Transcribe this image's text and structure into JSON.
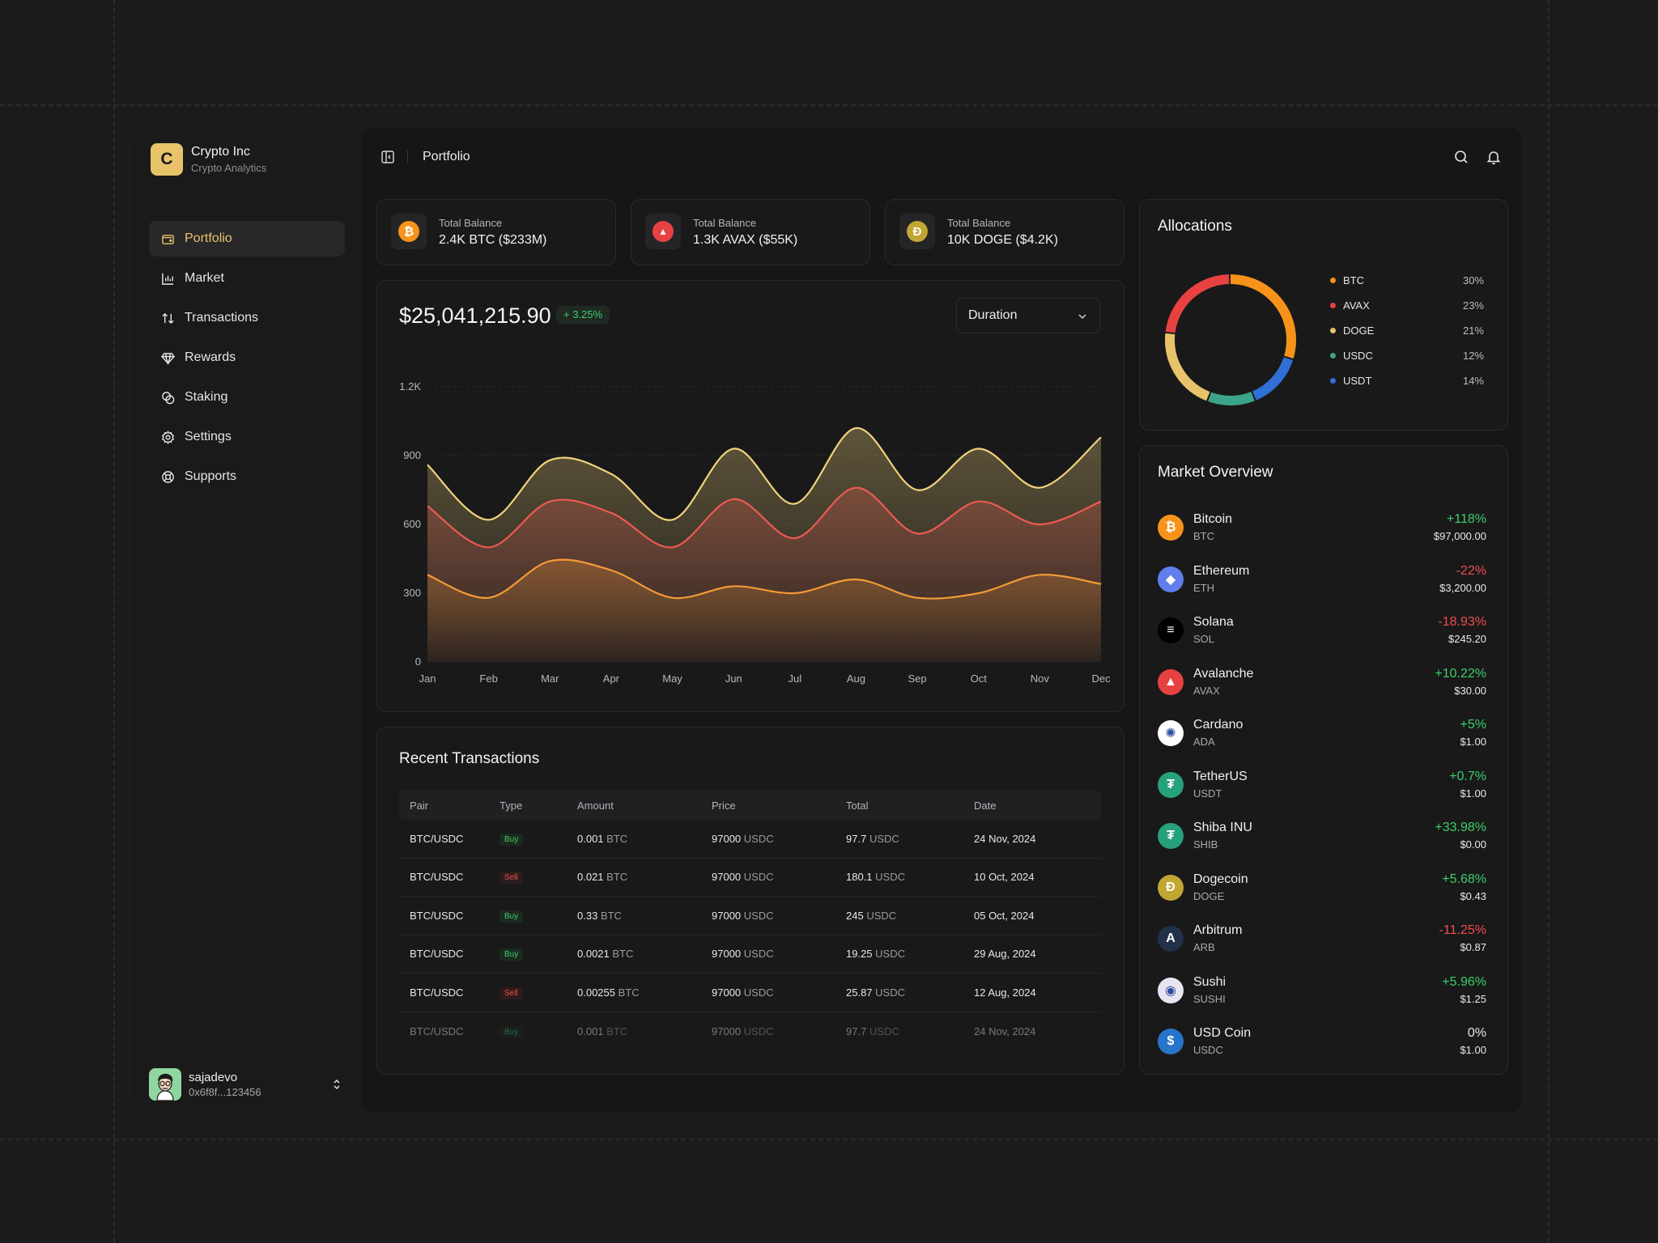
{
  "brand": {
    "logo_letter": "C",
    "name": "Crypto Inc",
    "subtitle": "Crypto Analytics"
  },
  "nav": [
    {
      "label": "Portfolio",
      "icon": "wallet-icon",
      "active": true
    },
    {
      "label": "Market",
      "icon": "chart-icon",
      "active": false
    },
    {
      "label": "Transactions",
      "icon": "arrows-icon",
      "active": false
    },
    {
      "label": "Rewards",
      "icon": "diamond-icon",
      "active": false
    },
    {
      "label": "Staking",
      "icon": "coins-icon",
      "active": false
    },
    {
      "label": "Settings",
      "icon": "gear-icon",
      "active": false
    },
    {
      "label": "Supports",
      "icon": "lifebuoy-icon",
      "active": false
    }
  ],
  "user": {
    "name": "sajadevo",
    "address": "0x6f8f...123456"
  },
  "header": {
    "title": "Portfolio"
  },
  "balances": [
    {
      "label": "Total Balance",
      "value": "2.4K BTC ($233M)",
      "icon": "btc-icon",
      "color": "#f7931a"
    },
    {
      "label": "Total Balance",
      "value": "1.3K AVAX ($55K)",
      "icon": "avax-icon",
      "color": "#e84142"
    },
    {
      "label": "Total Balance",
      "value": "10K DOGE ($4.2K)",
      "icon": "doge-icon",
      "color": "#c2a633"
    }
  ],
  "portfolio_chart": {
    "total": "$25,041,215.90",
    "change": "+ 3.25%",
    "duration_label": "Duration"
  },
  "chart_data": {
    "type": "area",
    "categories": [
      "Jan",
      "Feb",
      "Mar",
      "Apr",
      "May",
      "Jun",
      "Jul",
      "Aug",
      "Sep",
      "Oct",
      "Nov",
      "Dec"
    ],
    "y_ticks": [
      "0",
      "300",
      "600",
      "900",
      "1.2K"
    ],
    "ylim": [
      0,
      1200
    ],
    "grid": true,
    "legend": "none",
    "series": [
      {
        "color": "#f0d27a",
        "values": [
          860,
          620,
          880,
          820,
          620,
          930,
          690,
          1020,
          750,
          930,
          760,
          980
        ]
      },
      {
        "color": "#ec5a52",
        "values": [
          680,
          500,
          700,
          650,
          500,
          710,
          540,
          760,
          560,
          700,
          600,
          700
        ]
      },
      {
        "color": "#f39a36",
        "values": [
          380,
          280,
          440,
          400,
          280,
          330,
          300,
          360,
          280,
          300,
          380,
          340
        ]
      }
    ]
  },
  "transactions": {
    "title": "Recent Transactions",
    "columns": [
      "Pair",
      "Type",
      "Amount",
      "Price",
      "Total",
      "Date"
    ],
    "rows": [
      {
        "pair": "BTC/USDC",
        "type": "Buy",
        "amount": "0.001",
        "amount_unit": "BTC",
        "price": "97000",
        "price_unit": "USDC",
        "total": "97.7",
        "total_unit": "USDC",
        "date": "24 Nov, 2024"
      },
      {
        "pair": "BTC/USDC",
        "type": "Sell",
        "amount": "0.021",
        "amount_unit": "BTC",
        "price": "97000",
        "price_unit": "USDC",
        "total": "180.1",
        "total_unit": "USDC",
        "date": "10 Oct, 2024"
      },
      {
        "pair": "BTC/USDC",
        "type": "Buy",
        "amount": "0.33",
        "amount_unit": "BTC",
        "price": "97000",
        "price_unit": "USDC",
        "total": "245",
        "total_unit": "USDC",
        "date": "05 Oct, 2024"
      },
      {
        "pair": "BTC/USDC",
        "type": "Buy",
        "amount": "0.0021",
        "amount_unit": "BTC",
        "price": "97000",
        "price_unit": "USDC",
        "total": "19.25",
        "total_unit": "USDC",
        "date": "29 Aug, 2024"
      },
      {
        "pair": "BTC/USDC",
        "type": "Sell",
        "amount": "0.00255",
        "amount_unit": "BTC",
        "price": "97000",
        "price_unit": "USDC",
        "total": "25.87",
        "total_unit": "USDC",
        "date": "12 Aug, 2024"
      },
      {
        "pair": "BTC/USDC",
        "type": "Buy",
        "amount": "0.001",
        "amount_unit": "BTC",
        "price": "97000",
        "price_unit": "USDC",
        "total": "97.7",
        "total_unit": "USDC",
        "date": "24 Nov, 2024"
      }
    ]
  },
  "allocations": {
    "title": "Allocations",
    "items": [
      {
        "name": "BTC",
        "value": "30%",
        "pct": 30,
        "color": "#f7931a"
      },
      {
        "name": "AVAX",
        "value": "23%",
        "pct": 23,
        "color": "#e84142"
      },
      {
        "name": "DOGE",
        "value": "21%",
        "pct": 21,
        "color": "#e8c36a"
      },
      {
        "name": "USDC",
        "value": "12%",
        "pct": 12,
        "color": "#3aa58a"
      },
      {
        "name": "USDT",
        "value": "14%",
        "pct": 14,
        "color": "#2f6fd6"
      }
    ]
  },
  "market": {
    "title": "Market Overview",
    "items": [
      {
        "name": "Bitcoin",
        "symbol": "BTC",
        "change": "+118%",
        "price": "$97,000.00",
        "trend": "up",
        "icon": "btc-icon",
        "color": "#f7931a",
        "glyph": "₿"
      },
      {
        "name": "Ethereum",
        "symbol": "ETH",
        "change": "-22%",
        "price": "$3,200.00",
        "trend": "down",
        "icon": "eth-icon",
        "color": "#627eea",
        "glyph": "◆"
      },
      {
        "name": "Solana",
        "symbol": "SOL",
        "change": "-18.93%",
        "price": "$245.20",
        "trend": "down",
        "icon": "sol-icon",
        "color": "#000000",
        "glyph": "≡"
      },
      {
        "name": "Avalanche",
        "symbol": "AVAX",
        "change": "+10.22%",
        "price": "$30.00",
        "trend": "up",
        "icon": "avax-icon",
        "color": "#e84142",
        "glyph": "▲"
      },
      {
        "name": "Cardano",
        "symbol": "ADA",
        "change": "+5%",
        "price": "$1.00",
        "trend": "up",
        "icon": "ada-icon",
        "color": "#ffffff",
        "glyph": "✺"
      },
      {
        "name": "TetherUS",
        "symbol": "USDT",
        "change": "+0.7%",
        "price": "$1.00",
        "trend": "up",
        "icon": "usdt-icon",
        "color": "#26a17b",
        "glyph": "₮"
      },
      {
        "name": "Shiba INU",
        "symbol": "SHIB",
        "change": "+33.98%",
        "price": "$0.00",
        "trend": "up",
        "icon": "shib-icon",
        "color": "#26a17b",
        "glyph": "₮"
      },
      {
        "name": "Dogecoin",
        "symbol": "DOGE",
        "change": "+5.68%",
        "price": "$0.43",
        "trend": "up",
        "icon": "doge-icon",
        "color": "#c2a633",
        "glyph": "Ð"
      },
      {
        "name": "Arbitrum",
        "symbol": "ARB",
        "change": "-11.25%",
        "price": "$0.87",
        "trend": "down",
        "icon": "arb-icon",
        "color": "#213147",
        "glyph": "A"
      },
      {
        "name": "Sushi",
        "symbol": "SUSHI",
        "change": "+5.96%",
        "price": "$1.25",
        "trend": "up",
        "icon": "sushi-icon",
        "color": "#e9e4f0",
        "glyph": "◉"
      },
      {
        "name": "USD Coin",
        "symbol": "USDC",
        "change": "0%",
        "price": "$1.00",
        "trend": "flat",
        "icon": "usdc-icon",
        "color": "#2775ca",
        "glyph": "$"
      }
    ]
  },
  "colors": {
    "accent": "#e8c36a",
    "up": "#3dcf6b",
    "down": "#ef4d4d",
    "flat": "#e6e6e6"
  }
}
